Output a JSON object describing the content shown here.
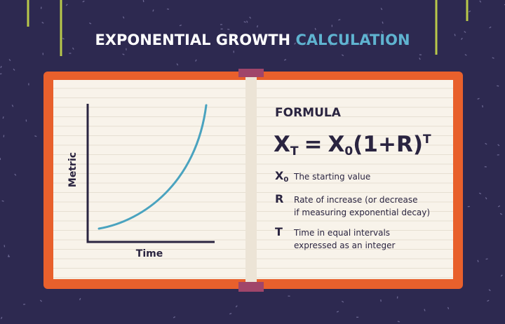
{
  "header": {
    "title": "EXPONENTIAL GROWTH",
    "title_highlight": "CALCULATION"
  },
  "graph": {
    "y_label": "Metric",
    "x_label": "Time"
  },
  "formula": {
    "heading": "FORMULA",
    "expression": {
      "lhs": "X",
      "lhs_sub": "T",
      "equals": "=",
      "rhs": "X",
      "rhs_sub": "0",
      "body": "(1+R)",
      "sup": "T"
    },
    "definitions": [
      {
        "symbol": "X",
        "symbol_sub": "0",
        "lines": [
          "The starting value"
        ]
      },
      {
        "symbol": "R",
        "lines": [
          "Rate of increase (or decrease",
          "if measuring exponential decay)"
        ]
      },
      {
        "symbol": "T",
        "lines": [
          "Time in equal intervals",
          "expressed as an integer"
        ]
      }
    ]
  }
}
